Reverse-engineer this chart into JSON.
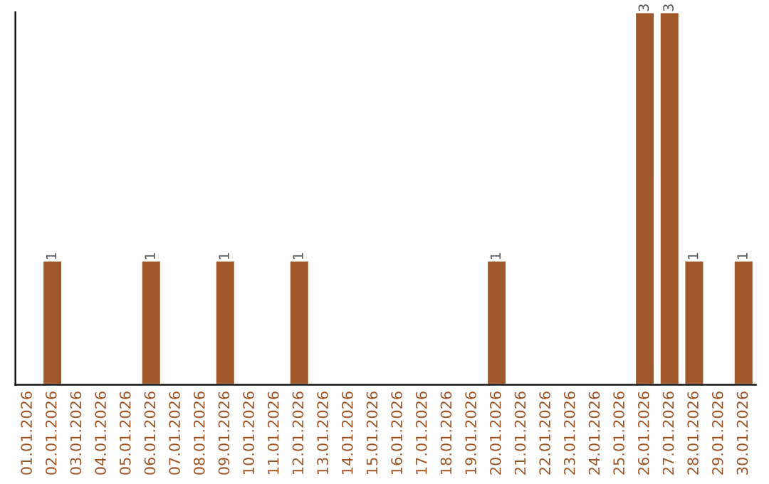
{
  "chart_data": {
    "type": "bar",
    "categories": [
      "01.01.2026",
      "02.01.2026",
      "03.01.2026",
      "04.01.2026",
      "05.01.2026",
      "06.01.2026",
      "07.01.2026",
      "08.01.2026",
      "09.01.2026",
      "10.01.2026",
      "11.01.2026",
      "12.01.2026",
      "13.01.2026",
      "14.01.2026",
      "15.01.2026",
      "16.01.2026",
      "17.01.2026",
      "18.01.2026",
      "19.01.2026",
      "20.01.2026",
      "21.01.2026",
      "22.01.2026",
      "23.01.2026",
      "24.01.2026",
      "25.01.2026",
      "26.01.2026",
      "27.01.2026",
      "28.01.2026",
      "29.01.2026",
      "30.01.2026"
    ],
    "values": [
      null,
      1,
      null,
      null,
      null,
      1,
      null,
      null,
      1,
      null,
      null,
      1,
      null,
      null,
      null,
      null,
      null,
      null,
      null,
      1,
      null,
      null,
      null,
      null,
      null,
      3,
      3,
      1,
      null,
      1
    ],
    "value_labels": [
      null,
      "1",
      null,
      null,
      null,
      "1",
      null,
      null,
      "1",
      null,
      null,
      "1",
      null,
      null,
      null,
      null,
      null,
      null,
      null,
      "1",
      null,
      null,
      null,
      null,
      null,
      "3",
      "3",
      "1",
      null,
      "1"
    ],
    "color": "#a0582a",
    "tick_labels": "x",
    "grid": false,
    "legend": false
  }
}
